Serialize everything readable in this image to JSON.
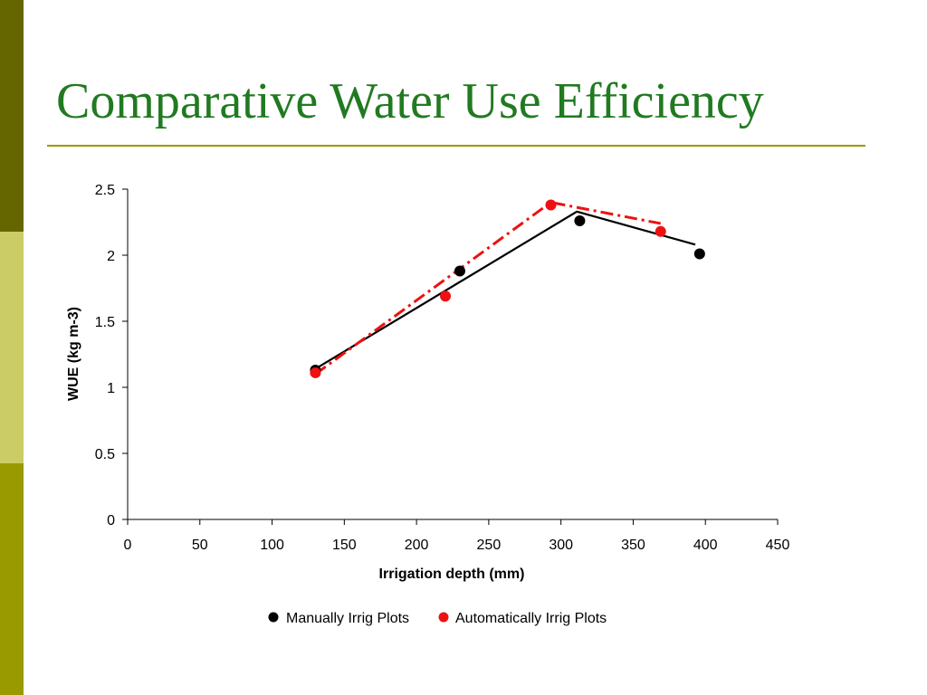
{
  "slide": {
    "title": "Comparative Water Use Efficiency",
    "theme_colors": {
      "bar_dark": "#666600",
      "bar_light": "#cccc66",
      "bar_mid": "#999900",
      "title": "#217a21"
    }
  },
  "chart_data": {
    "type": "scatter",
    "xlabel": "Irrigation depth (mm)",
    "ylabel": "WUE (kg m-3)",
    "xlim": [
      0,
      450
    ],
    "ylim": [
      0,
      2.5
    ],
    "x_ticks": [
      "0",
      "50",
      "100",
      "150",
      "200",
      "250",
      "300",
      "350",
      "400",
      "450"
    ],
    "y_ticks": [
      "0",
      "0.5",
      "1",
      "1.5",
      "2",
      "2.5"
    ],
    "grid": false,
    "legend_position": "bottom",
    "series": [
      {
        "name": "Manually Irrig Plots",
        "color": "#000000",
        "x": [
          130,
          230,
          313,
          396
        ],
        "y": [
          1.13,
          1.88,
          2.26,
          2.01
        ],
        "trend_line": {
          "style": "solid",
          "points": [
            [
              130,
              1.14
            ],
            [
              311,
              2.33
            ],
            [
              393,
              2.08
            ]
          ]
        }
      },
      {
        "name": "Automatically Irrig Plots",
        "color": "#ee1111",
        "x": [
          130,
          220,
          293,
          369
        ],
        "y": [
          1.11,
          1.69,
          2.38,
          2.18
        ],
        "trend_line": {
          "style": "dashdot",
          "points": [
            [
              130,
              1.1
            ],
            [
              293,
              2.4
            ],
            [
              369,
              2.24
            ]
          ]
        }
      }
    ]
  }
}
